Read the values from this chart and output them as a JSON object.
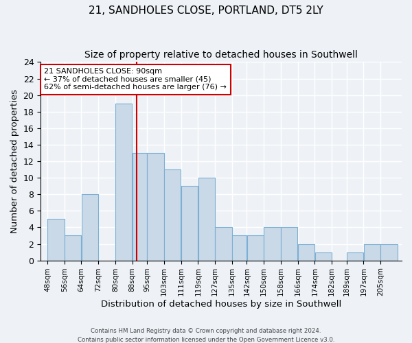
{
  "title": "21, SANDHOLES CLOSE, PORTLAND, DT5 2LY",
  "subtitle": "Size of property relative to detached houses in Southwell",
  "xlabel": "Distribution of detached houses by size in Southwell",
  "ylabel": "Number of detached properties",
  "footer_line1": "Contains HM Land Registry data © Crown copyright and database right 2024.",
  "footer_line2": "Contains public sector information licensed under the Open Government Licence v3.0.",
  "bin_labels": [
    "48sqm",
    "56sqm",
    "64sqm",
    "72sqm",
    "80sqm",
    "88sqm",
    "95sqm",
    "103sqm",
    "111sqm",
    "119sqm",
    "127sqm",
    "135sqm",
    "142sqm",
    "150sqm",
    "158sqm",
    "166sqm",
    "174sqm",
    "182sqm",
    "189sqm",
    "197sqm",
    "205sqm"
  ],
  "bar_heights": [
    5,
    3,
    8,
    0,
    19,
    13,
    13,
    11,
    9,
    10,
    4,
    3,
    3,
    4,
    4,
    2,
    1,
    0,
    1,
    2,
    2
  ],
  "bar_color": "#c9d9e8",
  "bar_edge_color": "#7bafd4",
  "highlight_line_color": "#cc0000",
  "annotation_title": "21 SANDHOLES CLOSE: 90sqm",
  "annotation_line1": "← 37% of detached houses are smaller (45)",
  "annotation_line2": "62% of semi-detached houses are larger (76) →",
  "annotation_box_color": "#ffffff",
  "annotation_box_edge": "#cc0000",
  "ylim": [
    0,
    24
  ],
  "yticks": [
    0,
    2,
    4,
    6,
    8,
    10,
    12,
    14,
    16,
    18,
    20,
    22,
    24
  ],
  "background_color": "#eef2f7",
  "grid_color": "#ffffff",
  "title_fontsize": 11,
  "subtitle_fontsize": 10
}
